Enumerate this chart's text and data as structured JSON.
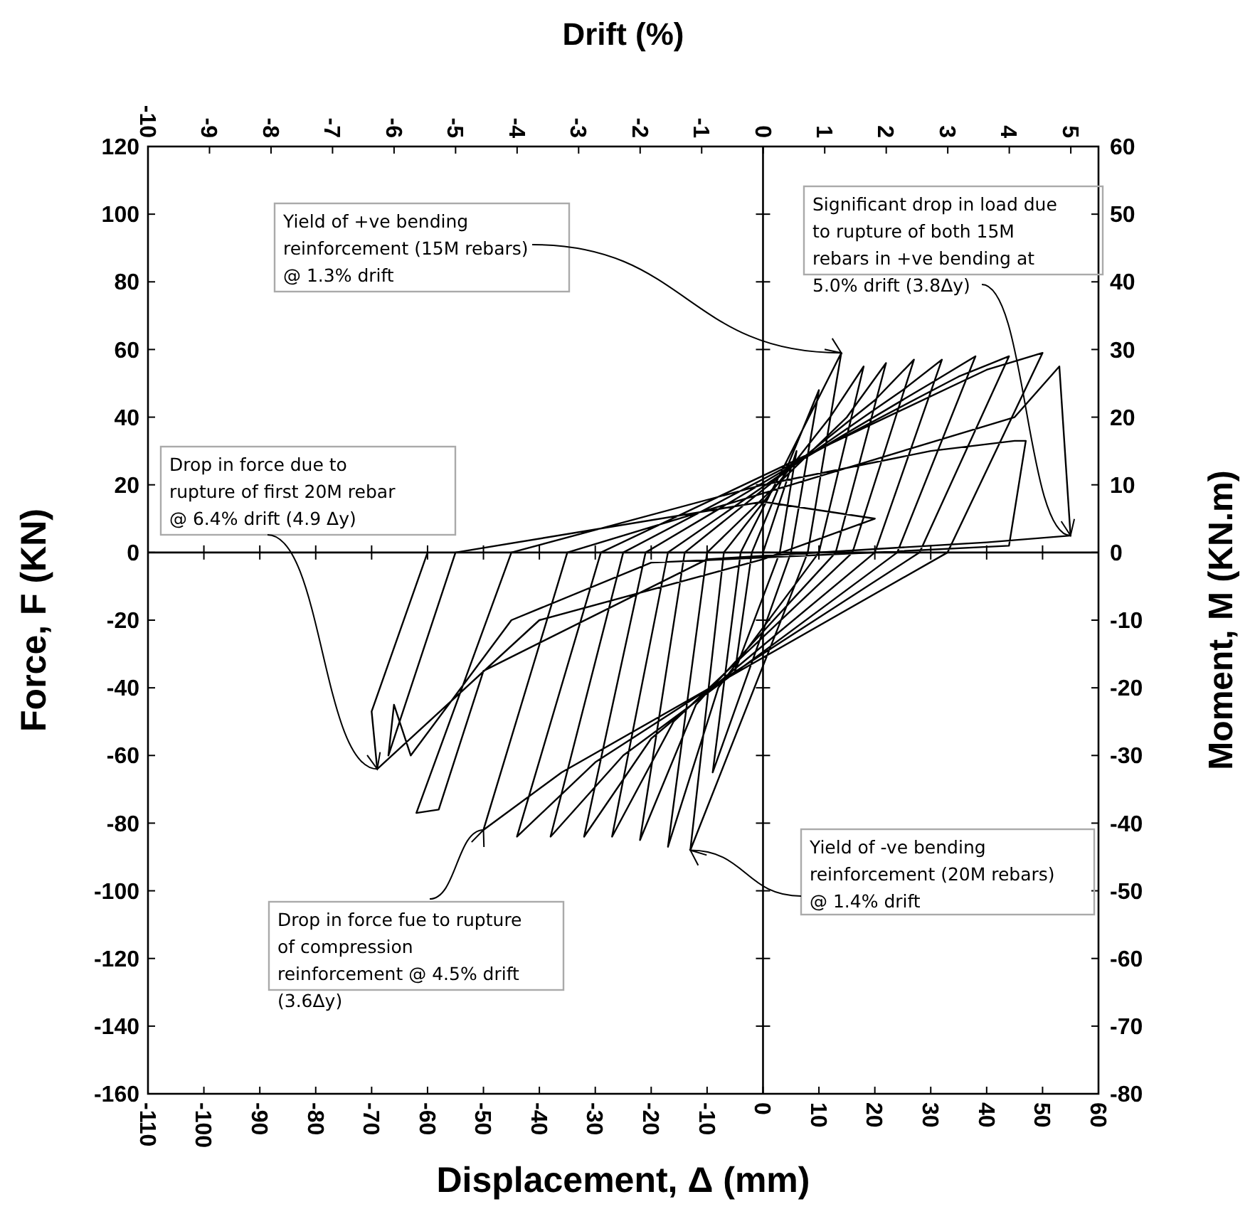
{
  "chart_data": {
    "type": "line",
    "xlabel": "Displacement, Δ (mm)",
    "ylabel": "Force, F (KN)",
    "y2label": "Moment, M  (KN.m)",
    "x2label": "Drift (%)",
    "xlim": [
      -110,
      60
    ],
    "xticks": [
      -110,
      -100,
      -90,
      -80,
      -70,
      -60,
      -50,
      -40,
      -30,
      -20,
      -10,
      0,
      10,
      20,
      30,
      40,
      50,
      60
    ],
    "ylim": [
      -160,
      120
    ],
    "yticks": [
      -160,
      -140,
      -120,
      -100,
      -80,
      -60,
      -40,
      -20,
      0,
      20,
      40,
      60,
      80,
      100,
      120
    ],
    "y2lim": [
      -80,
      60
    ],
    "y2ticks": [
      -80,
      -70,
      -60,
      -50,
      -40,
      -30,
      -20,
      -10,
      0,
      10,
      20,
      30,
      40,
      50,
      60
    ],
    "x2lim": [
      -10,
      5.45
    ],
    "x2ticks": [
      -10,
      -9,
      -8,
      -7,
      -6,
      -5,
      -4,
      -3,
      -2,
      -1,
      0,
      1,
      2,
      3,
      4,
      5
    ],
    "series": [
      {
        "color": "#000000",
        "x": [
          0,
          6,
          3,
          -5,
          -2,
          10,
          5,
          -9,
          -4,
          14,
          8,
          -13,
          -7,
          12,
          18,
          10,
          -8,
          -17,
          -10,
          15,
          22,
          13,
          -12,
          -22,
          -14,
          20,
          27,
          16,
          -16,
          -27,
          -17,
          25,
          32,
          20,
          -20,
          -32,
          -21,
          30,
          38,
          24,
          -25,
          -38,
          -25,
          35,
          44,
          28,
          -30,
          -44,
          -29,
          40,
          50,
          33,
          -36,
          -50,
          -35,
          45,
          53,
          55,
          40,
          -10,
          -50,
          -58,
          -62,
          -45,
          0,
          30,
          45,
          47,
          44,
          20,
          -20,
          -45,
          -63,
          -66,
          -67,
          -55,
          0,
          20,
          0,
          -40,
          -69,
          -70,
          -60
        ],
        "values": [
          0,
          30,
          0,
          -35,
          0,
          48,
          0,
          -65,
          0,
          59,
          0,
          -88,
          0,
          40,
          55,
          0,
          -40,
          -87,
          0,
          40,
          56,
          0,
          -45,
          -85,
          0,
          45,
          57,
          0,
          -50,
          -84,
          0,
          48,
          57,
          0,
          -55,
          -84,
          0,
          50,
          58,
          0,
          -60,
          -84,
          0,
          52,
          58,
          0,
          -62,
          -84,
          0,
          54,
          59,
          0,
          -65,
          -82,
          0,
          40,
          55,
          5,
          3,
          -2,
          -35,
          -76,
          -77,
          0,
          20,
          30,
          33,
          33,
          2,
          0,
          -3,
          -20,
          -60,
          -45,
          -60,
          0,
          15,
          10,
          -2,
          -20,
          -64,
          -47,
          0
        ]
      }
    ],
    "annotations": [
      {
        "text": "Yield of +ve bending\nreinforcement (15M rebars)\n@ 1.3% drift",
        "x": 14,
        "y": 59
      },
      {
        "text": "Significant drop in load due\nto rupture of both 15M\nrebars in +ve bending at\n5.0% drift (3.8Δy)",
        "x": 55,
        "y": 5
      },
      {
        "text": "Drop  in force due to\nrupture of first 20M rebar\n@ 6.4% drift (4.9 Δy)",
        "x": -69,
        "y": -64
      },
      {
        "text": "Drop in force fue to rupture\nof  compression\nreinforcement @ 4.5% drift\n(3.6Δy)",
        "x": -50,
        "y": -82
      },
      {
        "text": "Yield of -ve bending\nreinforcement (20M rebars)\n@ 1.4% drift",
        "x": -13,
        "y": -88
      }
    ]
  }
}
